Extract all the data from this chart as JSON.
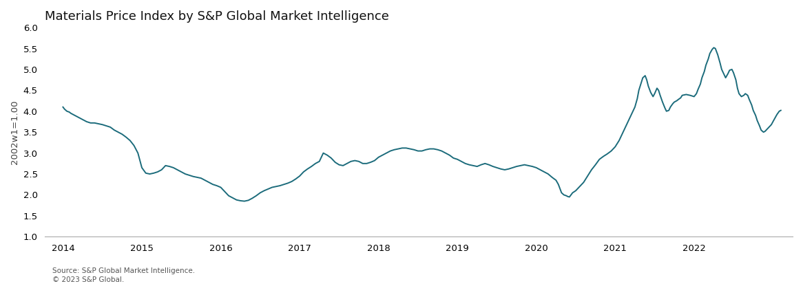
{
  "title": "Materials Price Index by S&P Global Market Intelligence",
  "ylabel": "2002w1=1.00",
  "source_line1": "Source: S&P Global Market Intelligence.",
  "source_line2": "© 2023 S&P Global.",
  "line_color": "#1b6b7b",
  "line_width": 1.4,
  "background_color": "#ffffff",
  "ylim": [
    1.0,
    6.0
  ],
  "yticks": [
    1.0,
    1.5,
    2.0,
    2.5,
    3.0,
    3.5,
    4.0,
    4.5,
    5.0,
    5.5,
    6.0
  ],
  "xlim_start": 2013.77,
  "xlim_end": 2023.25,
  "xtick_years": [
    2014,
    2015,
    2016,
    2017,
    2018,
    2019,
    2020,
    2021,
    2022
  ],
  "title_fontsize": 13,
  "axis_fontsize": 9.5,
  "source_fontsize": 7.5,
  "series": [
    2014.0,
    4.1,
    2014.02,
    4.05,
    2014.05,
    4.0,
    2014.08,
    3.98,
    2014.1,
    3.95,
    2014.15,
    3.9,
    2014.2,
    3.85,
    2014.25,
    3.8,
    2014.3,
    3.75,
    2014.35,
    3.72,
    2014.4,
    3.72,
    2014.45,
    3.7,
    2014.5,
    3.68,
    2014.55,
    3.65,
    2014.6,
    3.62,
    2014.65,
    3.55,
    2014.7,
    3.5,
    2014.75,
    3.45,
    2014.8,
    3.38,
    2014.85,
    3.3,
    2014.9,
    3.18,
    2014.95,
    3.0,
    2015.0,
    2.65,
    2015.05,
    2.52,
    2015.1,
    2.5,
    2015.15,
    2.52,
    2015.2,
    2.55,
    2015.25,
    2.6,
    2015.3,
    2.7,
    2015.35,
    2.68,
    2015.4,
    2.65,
    2015.45,
    2.6,
    2015.5,
    2.55,
    2015.55,
    2.5,
    2015.6,
    2.47,
    2015.65,
    2.44,
    2015.7,
    2.42,
    2015.75,
    2.4,
    2015.8,
    2.35,
    2015.85,
    2.3,
    2015.9,
    2.25,
    2015.95,
    2.22,
    2016.0,
    2.18,
    2016.05,
    2.08,
    2016.1,
    1.98,
    2016.15,
    1.93,
    2016.2,
    1.88,
    2016.25,
    1.86,
    2016.3,
    1.85,
    2016.35,
    1.87,
    2016.4,
    1.92,
    2016.45,
    1.98,
    2016.5,
    2.05,
    2016.55,
    2.1,
    2016.6,
    2.14,
    2016.65,
    2.18,
    2016.7,
    2.2,
    2016.75,
    2.22,
    2016.8,
    2.25,
    2016.85,
    2.28,
    2016.9,
    2.32,
    2016.95,
    2.38,
    2017.0,
    2.45,
    2017.05,
    2.55,
    2017.1,
    2.62,
    2017.15,
    2.68,
    2017.2,
    2.75,
    2017.25,
    2.8,
    2017.3,
    3.0,
    2017.35,
    2.95,
    2017.4,
    2.88,
    2017.45,
    2.78,
    2017.5,
    2.72,
    2017.55,
    2.7,
    2017.6,
    2.75,
    2017.65,
    2.8,
    2017.7,
    2.82,
    2017.75,
    2.8,
    2017.8,
    2.75,
    2017.85,
    2.75,
    2017.9,
    2.78,
    2017.95,
    2.82,
    2018.0,
    2.9,
    2018.05,
    2.95,
    2018.1,
    3.0,
    2018.15,
    3.05,
    2018.2,
    3.08,
    2018.25,
    3.1,
    2018.3,
    3.12,
    2018.35,
    3.12,
    2018.4,
    3.1,
    2018.45,
    3.08,
    2018.5,
    3.05,
    2018.55,
    3.05,
    2018.6,
    3.08,
    2018.65,
    3.1,
    2018.7,
    3.1,
    2018.75,
    3.08,
    2018.8,
    3.05,
    2018.85,
    3.0,
    2018.9,
    2.95,
    2018.95,
    2.88,
    2019.0,
    2.85,
    2019.05,
    2.8,
    2019.1,
    2.75,
    2019.15,
    2.72,
    2019.2,
    2.7,
    2019.25,
    2.68,
    2019.3,
    2.72,
    2019.35,
    2.75,
    2019.4,
    2.72,
    2019.45,
    2.68,
    2019.5,
    2.65,
    2019.55,
    2.62,
    2019.6,
    2.6,
    2019.65,
    2.62,
    2019.7,
    2.65,
    2019.75,
    2.68,
    2019.8,
    2.7,
    2019.85,
    2.72,
    2019.9,
    2.7,
    2019.95,
    2.68,
    2020.0,
    2.65,
    2020.05,
    2.6,
    2020.1,
    2.55,
    2020.15,
    2.5,
    2020.2,
    2.42,
    2020.25,
    2.35,
    2020.28,
    2.25,
    2020.3,
    2.15,
    2020.32,
    2.05,
    2020.35,
    2.0,
    2020.38,
    1.98,
    2020.4,
    1.96,
    2020.42,
    1.95,
    2020.44,
    2.0,
    2020.46,
    2.05,
    2020.5,
    2.1,
    2020.55,
    2.2,
    2020.6,
    2.3,
    2020.65,
    2.45,
    2020.7,
    2.6,
    2020.75,
    2.72,
    2020.8,
    2.85,
    2020.85,
    2.92,
    2020.9,
    2.98,
    2020.95,
    3.05,
    2021.0,
    3.15,
    2021.05,
    3.3,
    2021.1,
    3.5,
    2021.15,
    3.7,
    2021.2,
    3.9,
    2021.25,
    4.1,
    2021.28,
    4.3,
    2021.3,
    4.5,
    2021.33,
    4.68,
    2021.35,
    4.8,
    2021.38,
    4.85,
    2021.4,
    4.75,
    2021.42,
    4.6,
    2021.45,
    4.45,
    2021.48,
    4.35,
    2021.5,
    4.42,
    2021.53,
    4.55,
    2021.55,
    4.5,
    2021.57,
    4.38,
    2021.6,
    4.22,
    2021.63,
    4.08,
    2021.65,
    4.0,
    2021.68,
    4.02,
    2021.7,
    4.1,
    2021.73,
    4.18,
    2021.75,
    4.22,
    2021.78,
    4.25,
    2021.8,
    4.28,
    2021.83,
    4.32,
    2021.85,
    4.38,
    2021.9,
    4.4,
    2021.95,
    4.38,
    2022.0,
    4.35,
    2022.03,
    4.42,
    2022.05,
    4.52,
    2022.08,
    4.65,
    2022.1,
    4.8,
    2022.13,
    4.95,
    2022.15,
    5.1,
    2022.18,
    5.25,
    2022.2,
    5.38,
    2022.23,
    5.48,
    2022.25,
    5.52,
    2022.27,
    5.5,
    2022.3,
    5.35,
    2022.33,
    5.15,
    2022.35,
    5.0,
    2022.38,
    4.88,
    2022.4,
    4.8,
    2022.43,
    4.9,
    2022.45,
    4.98,
    2022.48,
    5.0,
    2022.5,
    4.92,
    2022.53,
    4.75,
    2022.55,
    4.55,
    2022.57,
    4.42,
    2022.6,
    4.35,
    2022.63,
    4.38,
    2022.65,
    4.42,
    2022.68,
    4.38,
    2022.7,
    4.28,
    2022.73,
    4.15,
    2022.75,
    4.02,
    2022.78,
    3.9,
    2022.8,
    3.78,
    2022.83,
    3.65,
    2022.85,
    3.55,
    2022.88,
    3.5,
    2022.9,
    3.52,
    2022.93,
    3.58,
    2022.95,
    3.62,
    2022.98,
    3.68,
    2023.0,
    3.75,
    2023.03,
    3.85,
    2023.05,
    3.92,
    2023.08,
    4.0,
    2023.1,
    4.02
  ]
}
